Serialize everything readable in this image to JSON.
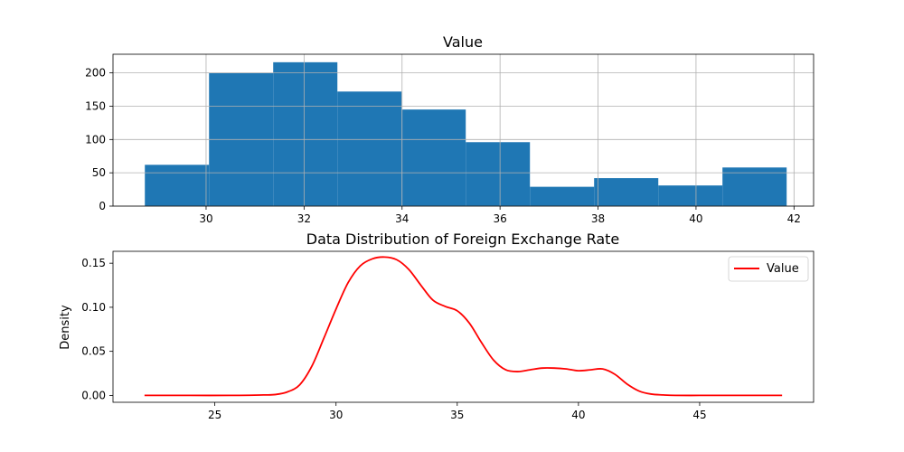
{
  "chart_data": [
    {
      "type": "bar",
      "title": "Value",
      "xlabel": "",
      "ylabel": "",
      "xlim": [
        28.1,
        42.4
      ],
      "ylim": [
        0,
        228
      ],
      "grid": true,
      "bar_color": "#1f77b4",
      "bins": [
        {
          "x0": 28.75,
          "x1": 30.06,
          "value": 62
        },
        {
          "x0": 30.06,
          "x1": 31.37,
          "value": 200
        },
        {
          "x0": 31.37,
          "x1": 32.68,
          "value": 216
        },
        {
          "x0": 32.68,
          "x1": 33.99,
          "value": 172
        },
        {
          "x0": 33.99,
          "x1": 35.3,
          "value": 145
        },
        {
          "x0": 35.3,
          "x1": 36.61,
          "value": 96
        },
        {
          "x0": 36.61,
          "x1": 37.92,
          "value": 29
        },
        {
          "x0": 37.92,
          "x1": 39.23,
          "value": 42
        },
        {
          "x0": 39.23,
          "x1": 40.54,
          "value": 31
        },
        {
          "x0": 40.54,
          "x1": 41.85,
          "value": 58
        }
      ],
      "xticks": [
        30,
        32,
        34,
        36,
        38,
        40,
        42
      ],
      "xtick_labels": [
        "30",
        "32",
        "34",
        "36",
        "38",
        "40",
        "42"
      ],
      "yticks": [
        0,
        50,
        100,
        150,
        200
      ],
      "ytick_labels": [
        "0",
        "50",
        "100",
        "150",
        "200"
      ]
    },
    {
      "type": "line",
      "title": "Data Distribution of Foreign Exchange Rate",
      "xlabel": "",
      "ylabel": "Density",
      "xlim": [
        20.8,
        49.7
      ],
      "ylim": [
        -0.0078,
        0.1635
      ],
      "grid": false,
      "legend_position": "top-right",
      "xticks": [
        25,
        30,
        35,
        40,
        45
      ],
      "xtick_labels": [
        "25",
        "30",
        "35",
        "40",
        "45"
      ],
      "yticks": [
        0.0,
        0.05,
        0.1,
        0.15
      ],
      "ytick_labels": [
        "0.00",
        "0.05",
        "0.10",
        "0.15"
      ],
      "series": [
        {
          "name": "Value",
          "color": "#ff0000",
          "x": [
            22.1,
            24,
            26,
            27,
            27.5,
            28,
            28.5,
            29,
            29.5,
            30,
            30.5,
            31,
            31.5,
            32,
            32.5,
            33,
            33.5,
            34,
            34.5,
            35,
            35.5,
            36,
            36.5,
            37,
            37.5,
            38,
            38.5,
            39,
            39.5,
            40,
            40.5,
            41,
            41.5,
            42,
            42.5,
            43,
            43.5,
            44,
            45,
            46,
            48.4
          ],
          "y": [
            0.0,
            0.0,
            0.0,
            0.0005,
            0.001,
            0.004,
            0.012,
            0.033,
            0.065,
            0.098,
            0.128,
            0.147,
            0.155,
            0.157,
            0.154,
            0.143,
            0.125,
            0.108,
            0.101,
            0.096,
            0.082,
            0.06,
            0.04,
            0.029,
            0.027,
            0.029,
            0.031,
            0.031,
            0.03,
            0.028,
            0.029,
            0.03,
            0.024,
            0.013,
            0.005,
            0.0015,
            0.0005,
            0.0,
            0.0,
            0.0,
            0.0
          ]
        }
      ]
    }
  ]
}
